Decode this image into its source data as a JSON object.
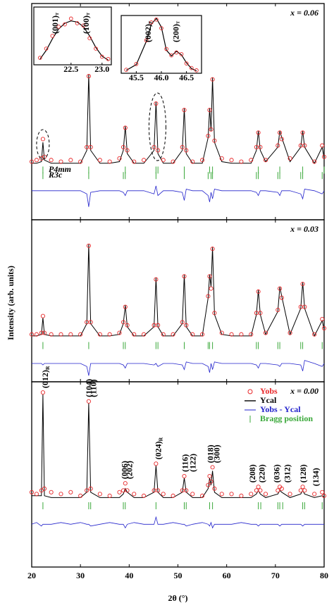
{
  "chart_data": [
    {
      "type": "line",
      "label": "x = 0.06",
      "xlim": [
        20,
        80
      ],
      "ylim": [
        -3,
        131
      ],
      "x": [
        20,
        21,
        22,
        22.3,
        22.6,
        24,
        26,
        28,
        30,
        31.3,
        31.7,
        32.1,
        34,
        36,
        38,
        38.8,
        39.2,
        39.6,
        41,
        43,
        45.1,
        45.5,
        45.9,
        47,
        49,
        50.9,
        51.3,
        51.7,
        53,
        55,
        56.2,
        56.5,
        56.8,
        57.1,
        57.5,
        59,
        61,
        63,
        65,
        66.1,
        66.5,
        66.9,
        68,
        70.5,
        70.9,
        71.3,
        73,
        75.2,
        75.6,
        76,
        78,
        79.6,
        80
      ],
      "series": [
        {
          "name": "Yobs",
          "color": "#e8282a",
          "values": [
            33,
            34,
            35,
            47,
            36,
            34,
            33,
            34,
            33,
            42,
            86,
            42,
            34,
            33,
            35,
            42,
            54,
            40,
            33,
            34,
            42,
            69,
            40,
            34,
            33,
            42,
            65,
            40,
            33,
            34,
            49,
            65,
            53,
            84,
            46,
            35,
            34,
            33,
            34,
            42,
            51,
            42,
            34,
            43,
            51,
            47,
            35,
            43,
            51,
            43,
            33,
            43,
            36
          ]
        },
        {
          "name": "Ycal",
          "color": "#000000",
          "values": [
            32,
            32,
            33,
            45,
            34,
            32,
            32,
            32,
            32,
            40,
            87,
            40,
            32,
            32,
            33,
            40,
            55,
            38,
            32,
            32,
            40,
            70,
            38,
            32,
            32,
            40,
            66,
            38,
            32,
            32,
            48,
            66,
            52,
            85,
            45,
            33,
            32,
            32,
            32,
            40,
            52,
            40,
            33,
            42,
            52,
            48,
            33,
            42,
            52,
            42,
            32,
            42,
            35
          ]
        },
        {
          "name": "Yobs - Ycal",
          "color": "#2323cc",
          "values": [
            15,
            15,
            15,
            15,
            15,
            15,
            15,
            15,
            15,
            13,
            5,
            14,
            15,
            15,
            15,
            14,
            12,
            15,
            15,
            15,
            13,
            18,
            12,
            15,
            15,
            14,
            9,
            16,
            15,
            15,
            12,
            8,
            14,
            10,
            16,
            15,
            15,
            15,
            15,
            14,
            12,
            15,
            15,
            14,
            12,
            15,
            15,
            13,
            10,
            16,
            15,
            13,
            15
          ]
        }
      ],
      "bragg_color": "#3aa83a",
      "bragg": [
        {
          "name": "P4mm",
          "positions": [
            22.3,
            31.7,
            39.2,
            45.5,
            45.9,
            51.3,
            56.5,
            57.1,
            66.5,
            70.9,
            75.6,
            80
          ]
        },
        {
          "name": "R3c",
          "positions": [
            22.3,
            31.7,
            38.8,
            39.2,
            45.5,
            51.3,
            56.2,
            56.8,
            57.1,
            66.1,
            66.5,
            70.5,
            70.9,
            75.2,
            75.6,
            79.6
          ]
        }
      ],
      "insets": [
        {
          "xlim": [
            21.9,
            23.15
          ],
          "ylim": [
            0,
            100
          ],
          "xticks": [
            22.5,
            {
              "value": 23,
              "label": "23.0"
            }
          ],
          "x": [
            22.0,
            22.1,
            22.2,
            22.3,
            22.4,
            22.5,
            22.6,
            22.7,
            22.8,
            22.9,
            23.0,
            23.1
          ],
          "yobs": [
            12,
            28,
            50,
            66,
            70,
            80,
            72,
            68,
            46,
            28,
            14,
            10
          ],
          "ycal": [
            10,
            25,
            45,
            62,
            72,
            76,
            74,
            66,
            50,
            30,
            15,
            8
          ],
          "peaks": [
            {
              "text": "(001)",
              "sub": "T",
              "x": 22.25
            },
            {
              "text": "(100)",
              "sub": "T",
              "x": 22.75
            }
          ]
        },
        {
          "xlim": [
            45.2,
            46.8
          ],
          "ylim": [
            0,
            100
          ],
          "xticks": [
            45.5,
            {
              "value": 46,
              "label": "46.0"
            },
            46.5
          ],
          "x": [
            45.3,
            45.5,
            45.7,
            45.8,
            45.9,
            46.0,
            46.1,
            46.2,
            46.3,
            46.4,
            46.5,
            46.6,
            46.7
          ],
          "yobs": [
            6,
            16,
            57,
            88,
            93,
            78,
            42,
            31,
            36,
            33,
            17,
            9,
            5
          ],
          "ycal": [
            5,
            15,
            55,
            85,
            95,
            80,
            40,
            30,
            38,
            32,
            18,
            8,
            4
          ],
          "peaks": [
            {
              "text": "(002)",
              "sub": "T",
              "x": 45.75
            },
            {
              "text": "(200)",
              "sub": "T",
              "x": 46.3
            }
          ]
        }
      ]
    },
    {
      "type": "line",
      "label": "x = 0.03",
      "xlim": [
        20,
        80
      ],
      "ylim": [
        0,
        106
      ],
      "ylabel": "Intensity (arb. units)",
      "x": [
        20,
        21,
        22,
        22.3,
        22.6,
        24,
        26,
        28,
        30,
        31.3,
        31.7,
        32.1,
        34,
        36,
        38,
        38.8,
        39.2,
        39.6,
        41,
        43,
        45.1,
        45.5,
        45.9,
        47,
        49,
        50.9,
        51.3,
        51.7,
        53,
        55,
        56.2,
        56.5,
        56.8,
        57.1,
        57.5,
        59,
        61,
        63,
        65,
        66.1,
        66.5,
        66.9,
        68,
        70.5,
        70.9,
        71.3,
        73,
        75.2,
        75.6,
        76,
        78,
        79.6,
        80
      ],
      "series": [
        {
          "name": "Yobs",
          "color": "#e8282a",
          "values": [
            31,
            31,
            32,
            43,
            32,
            31,
            31,
            31,
            31,
            39,
            89,
            39,
            31,
            31,
            32,
            39,
            49,
            37,
            31,
            31,
            37,
            67,
            37,
            31,
            31,
            39,
            69,
            37,
            31,
            31,
            56,
            69,
            61,
            87,
            45,
            32,
            31,
            31,
            31,
            45,
            59,
            45,
            32,
            47,
            61,
            55,
            32,
            49,
            64,
            49,
            31,
            41,
            35
          ]
        },
        {
          "name": "Ycal",
          "color": "#000000",
          "values": [
            30,
            30,
            31,
            42,
            31,
            30,
            30,
            30,
            30,
            38,
            90,
            38,
            30,
            30,
            31,
            38,
            50,
            36,
            30,
            30,
            36,
            68,
            36,
            30,
            30,
            38,
            70,
            36,
            30,
            30,
            55,
            70,
            62,
            88,
            44,
            31,
            30,
            30,
            30,
            44,
            60,
            44,
            31,
            46,
            62,
            56,
            31,
            48,
            65,
            48,
            30,
            40,
            34
          ]
        },
        {
          "name": "Yobs - Ycal",
          "color": "#2323cc",
          "values": [
            12,
            12,
            12,
            11,
            12,
            12,
            12,
            12,
            12,
            10,
            4,
            12,
            12,
            12,
            12,
            11,
            9,
            12,
            12,
            12,
            11,
            12,
            10,
            12,
            12,
            11,
            8,
            13,
            12,
            12,
            10,
            6,
            12,
            8,
            13,
            12,
            12,
            12,
            12,
            11,
            9,
            12,
            12,
            11,
            10,
            12,
            12,
            11,
            7,
            14,
            12,
            10,
            12
          ]
        }
      ],
      "bragg_color": "#3aa83a",
      "bragg": [
        {
          "positions": [
            22.3,
            31.7,
            38.8,
            39.2,
            45.5,
            45.9,
            51.3,
            56.2,
            56.5,
            57.1,
            66.1,
            66.5,
            70.5,
            70.9,
            75.2,
            75.6,
            79.6
          ]
        }
      ]
    },
    {
      "type": "line",
      "label": "x = 0.00",
      "xlim": [
        20,
        80
      ],
      "ylim": [
        -12,
        92
      ],
      "xticks": [
        20,
        30,
        40,
        50,
        60,
        70,
        80
      ],
      "xlabel": "2θ (°)",
      "bragg_name": "Bragg position",
      "x": [
        20,
        21,
        22,
        22.3,
        22.6,
        24,
        26,
        28,
        30,
        31.3,
        31.7,
        32.1,
        34,
        36,
        38,
        38.8,
        39.2,
        39.6,
        41,
        43,
        45.1,
        45.5,
        45.9,
        47,
        49,
        50.9,
        51.3,
        51.7,
        53,
        55,
        56.2,
        56.5,
        56.8,
        57.1,
        57.5,
        59,
        61,
        63,
        65,
        66.1,
        66.5,
        66.9,
        68,
        70.5,
        70.9,
        71.3,
        73,
        75.2,
        75.6,
        76,
        78,
        79.6,
        80
      ],
      "series": [
        {
          "name": "Yobs",
          "color": "#e8282a",
          "values": [
            30,
            29,
            31,
            86,
            32,
            30,
            29,
            30,
            28,
            31,
            81,
            32,
            29,
            28,
            30,
            31,
            35,
            31,
            29,
            28,
            31,
            46,
            31,
            29,
            28,
            31,
            39,
            31,
            29,
            28,
            34,
            39,
            36,
            44,
            32,
            29,
            29,
            28,
            29,
            31,
            33,
            31,
            29,
            31,
            33,
            32,
            29,
            31,
            33,
            31,
            29,
            30,
            28
          ]
        },
        {
          "name": "Ycal",
          "color": "#000000",
          "values": [
            28,
            28,
            28,
            85,
            28,
            27,
            27,
            27,
            27,
            30,
            80,
            30,
            27,
            27,
            27,
            29,
            32,
            30,
            27,
            27,
            30,
            45,
            30,
            27,
            27,
            30,
            38,
            30,
            27,
            27,
            32,
            38,
            34,
            42,
            30,
            27,
            27,
            27,
            27,
            29,
            31,
            29,
            27,
            29,
            31,
            30,
            27,
            29,
            31,
            29,
            27,
            28,
            27
          ]
        },
        {
          "name": "Yobs - Ycal",
          "color": "#2323cc",
          "values": [
            12,
            13,
            11,
            12,
            12,
            12,
            13,
            12,
            13,
            12,
            12,
            11,
            12,
            13,
            12,
            12,
            10,
            12,
            13,
            12,
            12,
            16,
            12,
            12,
            13,
            12,
            12,
            11,
            12,
            13,
            12,
            11,
            13,
            10,
            12,
            12,
            12,
            13,
            12,
            12,
            11,
            12,
            12,
            12,
            11,
            12,
            12,
            12,
            11,
            12,
            12,
            12,
            12
          ]
        }
      ],
      "bragg_color": "#3aa83a",
      "bragg": [
        {
          "positions": [
            22.3,
            31.7,
            32.1,
            38.8,
            39.2,
            45.5,
            51.3,
            51.7,
            56.5,
            57.1,
            66.5,
            67,
            70.5,
            70.9,
            71.5,
            75.6,
            76,
            79.6
          ]
        }
      ],
      "peaks": [
        {
          "text": "(012)",
          "sub": "R",
          "x": 22.3
        },
        {
          "text": "(104)",
          "x": 31.3
        },
        {
          "text": "(110)",
          "x": 32.2
        },
        {
          "text": "(006)",
          "x": 38.6
        },
        {
          "text": "(202)",
          "x": 39.6
        },
        {
          "text": "(024)",
          "sub": "R",
          "x": 45.5
        },
        {
          "text": "(116)",
          "x": 51.0
        },
        {
          "text": "(122)",
          "x": 52.6
        },
        {
          "text": "(018)",
          "x": 56.2
        },
        {
          "text": "(300)",
          "x": 57.5
        },
        {
          "text": "(208)",
          "x": 64.8
        },
        {
          "text": "(220)",
          "x": 66.8
        },
        {
          "text": "(036)",
          "x": 69.8
        },
        {
          "text": "(312)",
          "x": 72.0
        },
        {
          "text": "(128)",
          "x": 75.2
        },
        {
          "text": "(134)",
          "x": 77.8
        }
      ]
    }
  ]
}
